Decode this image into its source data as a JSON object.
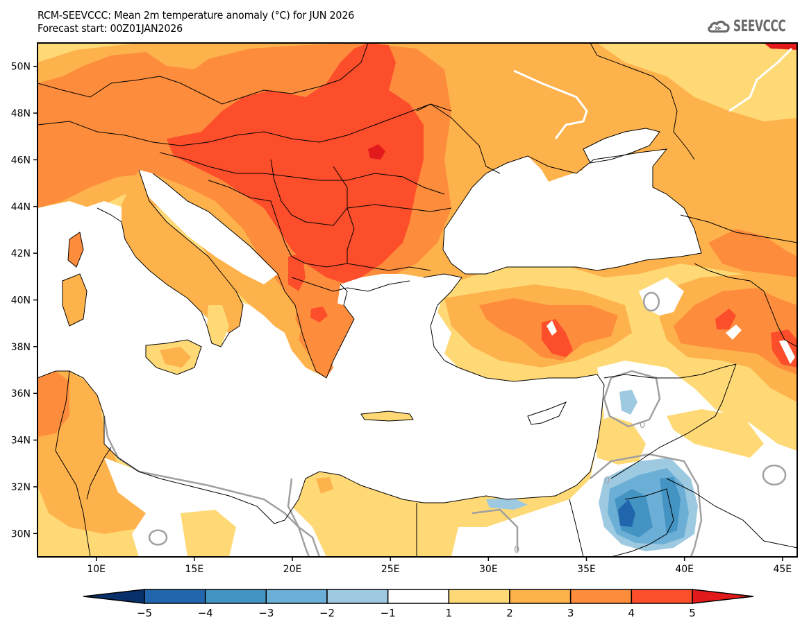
{
  "header": {
    "title_line1": "RCM-SEEVCCC: Mean 2m temperature anomaly (°C) for JUN 2026",
    "title_line2": "Forecast start: 00Z01JAN2026"
  },
  "logo": {
    "icon": "cloud-icon",
    "text": "SEEVCCC",
    "color": "#6a6a6a"
  },
  "map": {
    "variable": "Mean 2m temperature anomaly",
    "units": "°C",
    "valid_period": "JUN 2026",
    "forecast_start": "00Z01JAN2026",
    "lon_range": [
      7,
      45.75
    ],
    "lat_range": [
      29,
      51
    ],
    "lat_ticks": [
      "50N",
      "48N",
      "46N",
      "44N",
      "42N",
      "40N",
      "38N",
      "36N",
      "34N",
      "32N",
      "30N"
    ],
    "lon_ticks": [
      "10E",
      "15E",
      "20E",
      "25E",
      "30E",
      "35E",
      "40E",
      "45E"
    ],
    "contour_label": "0",
    "contour_color": "#a0a0a0",
    "sea_color": "#ffffff"
  },
  "colorbar": {
    "levels": [
      "-5",
      "-4",
      "-3",
      "-2",
      "-1",
      "1",
      "2",
      "3",
      "4",
      "5"
    ],
    "below_color": "#08306b",
    "above_color": "#e31a1c",
    "bin_colors": [
      "#2166ac",
      "#4393c3",
      "#6baed6",
      "#9ecae1",
      "#ffffff",
      "#fed976",
      "#feb24c",
      "#fd8d3c",
      "#fc4e2a"
    ]
  }
}
